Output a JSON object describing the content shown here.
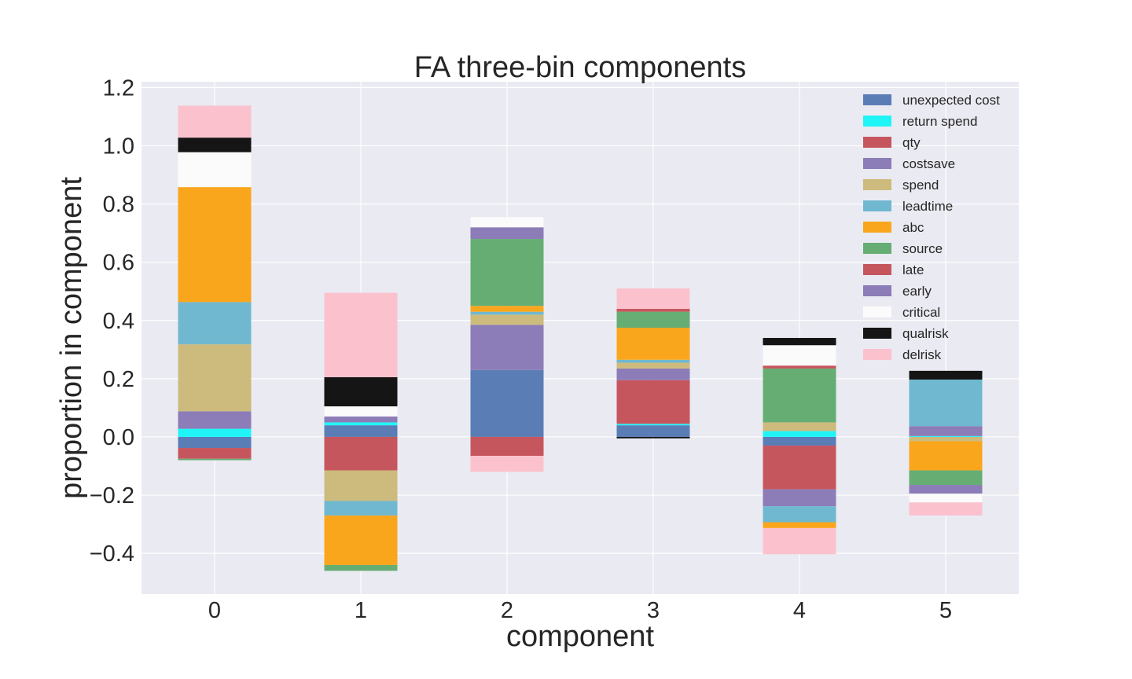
{
  "chart_data": {
    "type": "bar",
    "stacked": true,
    "title": "FA three-bin components",
    "xlabel": "component",
    "ylabel": "proportion in component",
    "categories": [
      "0",
      "1",
      "2",
      "3",
      "4",
      "5"
    ],
    "ylim": [
      -0.54,
      1.22
    ],
    "yticks": [
      -0.4,
      -0.2,
      0.0,
      0.2,
      0.4,
      0.6,
      0.8,
      1.0,
      1.2
    ],
    "ytick_labels": [
      "−0.4",
      "−0.2",
      "0.0",
      "0.2",
      "0.4",
      "0.6",
      "0.8",
      "1.0",
      "1.2"
    ],
    "grid": true,
    "legend_position": "top-right",
    "series": [
      {
        "name": "unexpected cost",
        "color": "#5b7db6",
        "values": [
          -0.038,
          0.04,
          0.23,
          0.04,
          -0.03,
          0.0
        ]
      },
      {
        "name": "return spend",
        "color": "#1ff5f7",
        "values": [
          0.028,
          0.01,
          0.0,
          0.005,
          0.02,
          0.003
        ]
      },
      {
        "name": "qty",
        "color": "#c6565e",
        "values": [
          -0.037,
          -0.115,
          -0.065,
          0.15,
          -0.15,
          0.0
        ]
      },
      {
        "name": "costsave",
        "color": "#8c7cb7",
        "values": [
          0.06,
          0.02,
          0.155,
          0.04,
          -0.058,
          0.034
        ]
      },
      {
        "name": "spend",
        "color": "#ccbb7c",
        "values": [
          0.23,
          -0.105,
          0.035,
          0.02,
          0.03,
          -0.015
        ]
      },
      {
        "name": "leadtime",
        "color": "#70b8d0",
        "values": [
          0.145,
          -0.05,
          0.01,
          0.01,
          -0.055,
          0.16
        ]
      },
      {
        "name": "abc",
        "color": "#faa61c",
        "values": [
          0.395,
          -0.17,
          0.02,
          0.11,
          -0.02,
          -0.1
        ]
      },
      {
        "name": "source",
        "color": "#66ad74",
        "values": [
          -0.005,
          -0.02,
          0.23,
          0.055,
          0.185,
          -0.05
        ]
      },
      {
        "name": "late",
        "color": "#c6565e",
        "values": [
          0.0,
          0.0,
          0.0,
          0.01,
          0.01,
          0.0
        ]
      },
      {
        "name": "early",
        "color": "#8c7cb7",
        "values": [
          0.0,
          0.0,
          0.04,
          0.0,
          0.0,
          -0.03
        ]
      },
      {
        "name": "critical",
        "color": "#fbfbfb",
        "values": [
          0.12,
          0.035,
          0.035,
          0.0,
          0.07,
          -0.03
        ]
      },
      {
        "name": "qualrisk",
        "color": "#151515",
        "values": [
          0.05,
          0.1,
          0.0,
          -0.005,
          0.025,
          0.03
        ]
      },
      {
        "name": "delrisk",
        "color": "#fbc2ce",
        "values": [
          0.11,
          0.29,
          -0.055,
          0.07,
          -0.09,
          -0.045
        ]
      }
    ]
  }
}
